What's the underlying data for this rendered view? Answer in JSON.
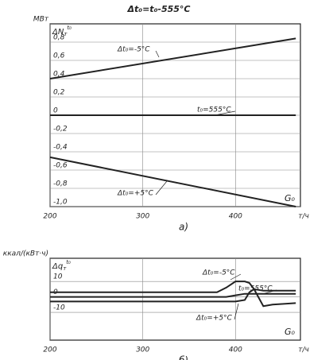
{
  "chart_data": [
    {
      "type": "line",
      "title": "Δt₀=t₀-555°C",
      "y_unit": "МВт",
      "y_label": "ΔN",
      "y_label_sub": "т",
      "y_label_sup": "t₀",
      "x_label": "G₀",
      "x_unit": "т/ч",
      "panel_label": "а)",
      "x": [
        200,
        465
      ],
      "series": [
        {
          "name": "Δt₀=-5°C",
          "color": "#222",
          "values": [
            0.4,
            0.84
          ]
        },
        {
          "name": "t₀=555°C",
          "color": "#222",
          "values": [
            0,
            0
          ]
        },
        {
          "name": "Δt₀=+5°C",
          "color": "#222",
          "values": [
            -0.46,
            -1.0
          ]
        }
      ],
      "xlim": [
        200,
        470
      ],
      "xticks": [
        200,
        300,
        400
      ],
      "ylim": [
        -1,
        1
      ],
      "yticks": [
        {
          "value": 0.8,
          "label": "0,8"
        },
        {
          "value": 0.6,
          "label": "0,6"
        },
        {
          "value": 0.4,
          "label": "0,4"
        },
        {
          "value": 0.2,
          "label": "0,2"
        },
        0,
        {
          "value": -0.2,
          "label": "-0,2"
        },
        {
          "value": -0.4,
          "label": "-0,4"
        },
        {
          "value": -0.6,
          "label": "-0,6"
        },
        {
          "value": -0.8,
          "label": "-0,8"
        },
        {
          "value": -1,
          "label": "-1,0"
        }
      ],
      "grid": true
    },
    {
      "type": "line",
      "y_unit": "ккал/(кВт·ч)",
      "y_label": "Δq",
      "y_label_sub": "т",
      "y_label_sup": "t₀",
      "x_label": "G₀",
      "x_unit": "т/ч",
      "panel_label": "б)",
      "x": [
        200,
        380,
        390,
        400,
        410,
        415,
        420,
        430,
        440,
        465
      ],
      "series": [
        {
          "name": "Δt₀=-5°C",
          "color": "#222",
          "values": [
            3,
            3,
            6,
            10,
            10,
            9,
            5,
            4,
            4,
            4
          ]
        },
        {
          "name": "t₀=555°C",
          "color": "#222",
          "values": [
            0,
            0,
            0,
            1,
            2,
            2,
            2,
            2,
            2,
            2
          ]
        },
        {
          "name": "Δt₀=+5°C",
          "color": "#222",
          "values": [
            -3,
            -3,
            -3,
            -3,
            -2,
            3,
            5,
            -6,
            -5,
            -4
          ]
        }
      ],
      "xlim": [
        200,
        470
      ],
      "xticks": [
        200,
        300,
        400
      ],
      "ylim": [
        -28,
        25
      ],
      "yticks": [
        10,
        0,
        -10
      ],
      "grid": true
    }
  ]
}
